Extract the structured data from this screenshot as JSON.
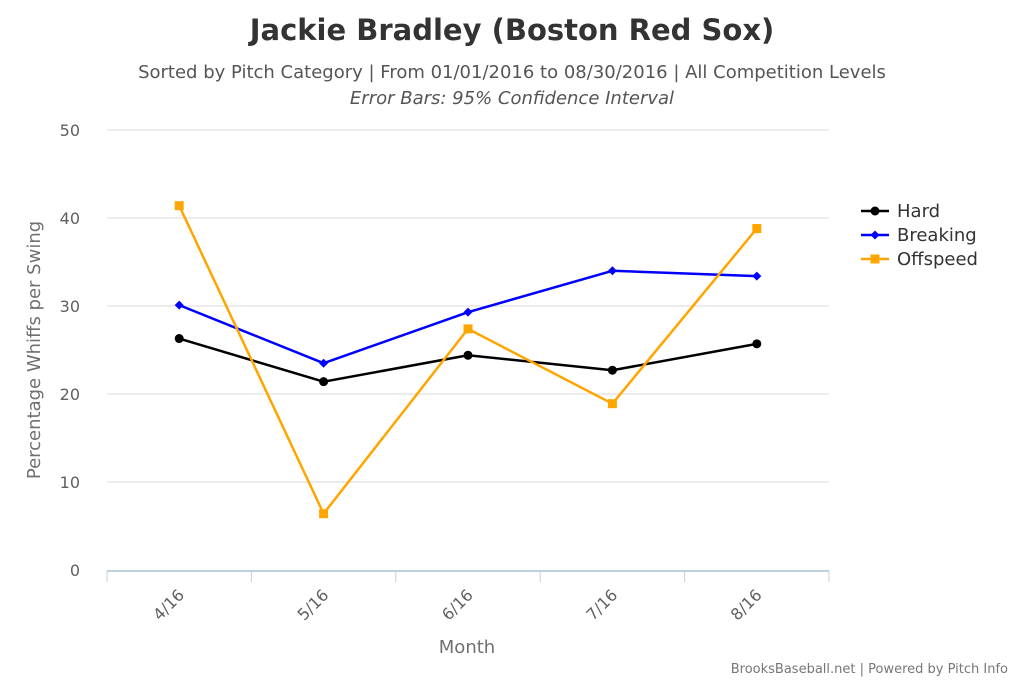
{
  "chart_data": {
    "type": "line",
    "title": "Jackie Bradley (Boston Red Sox)",
    "subtitle": "Sorted by Pitch Category | From 01/01/2016 to 08/30/2016 | All Competition Levels",
    "subtitle2": "Error Bars: 95% Confidence Interval",
    "xlabel": "Month",
    "ylabel": "Percentage Whiffs per Swing",
    "categories": [
      "4/16",
      "5/16",
      "6/16",
      "7/16",
      "8/16"
    ],
    "ylim": [
      0,
      50
    ],
    "yticks": [
      "0",
      "10",
      "20",
      "30",
      "40",
      "50"
    ],
    "grid": true,
    "legend_position": "right",
    "series": [
      {
        "name": "Hard",
        "color": "#000000",
        "marker": "circle",
        "values": [
          26.3,
          21.4,
          24.4,
          22.7,
          25.7
        ]
      },
      {
        "name": "Breaking",
        "color": "#0000ff",
        "marker": "diamond",
        "values": [
          30.1,
          23.5,
          29.3,
          34.0,
          33.4
        ]
      },
      {
        "name": "Offspeed",
        "color": "#ffa500",
        "marker": "square",
        "values": [
          41.4,
          6.4,
          27.4,
          18.9,
          38.8
        ]
      }
    ],
    "credits": "BrooksBaseball.net | Powered by Pitch Info"
  }
}
